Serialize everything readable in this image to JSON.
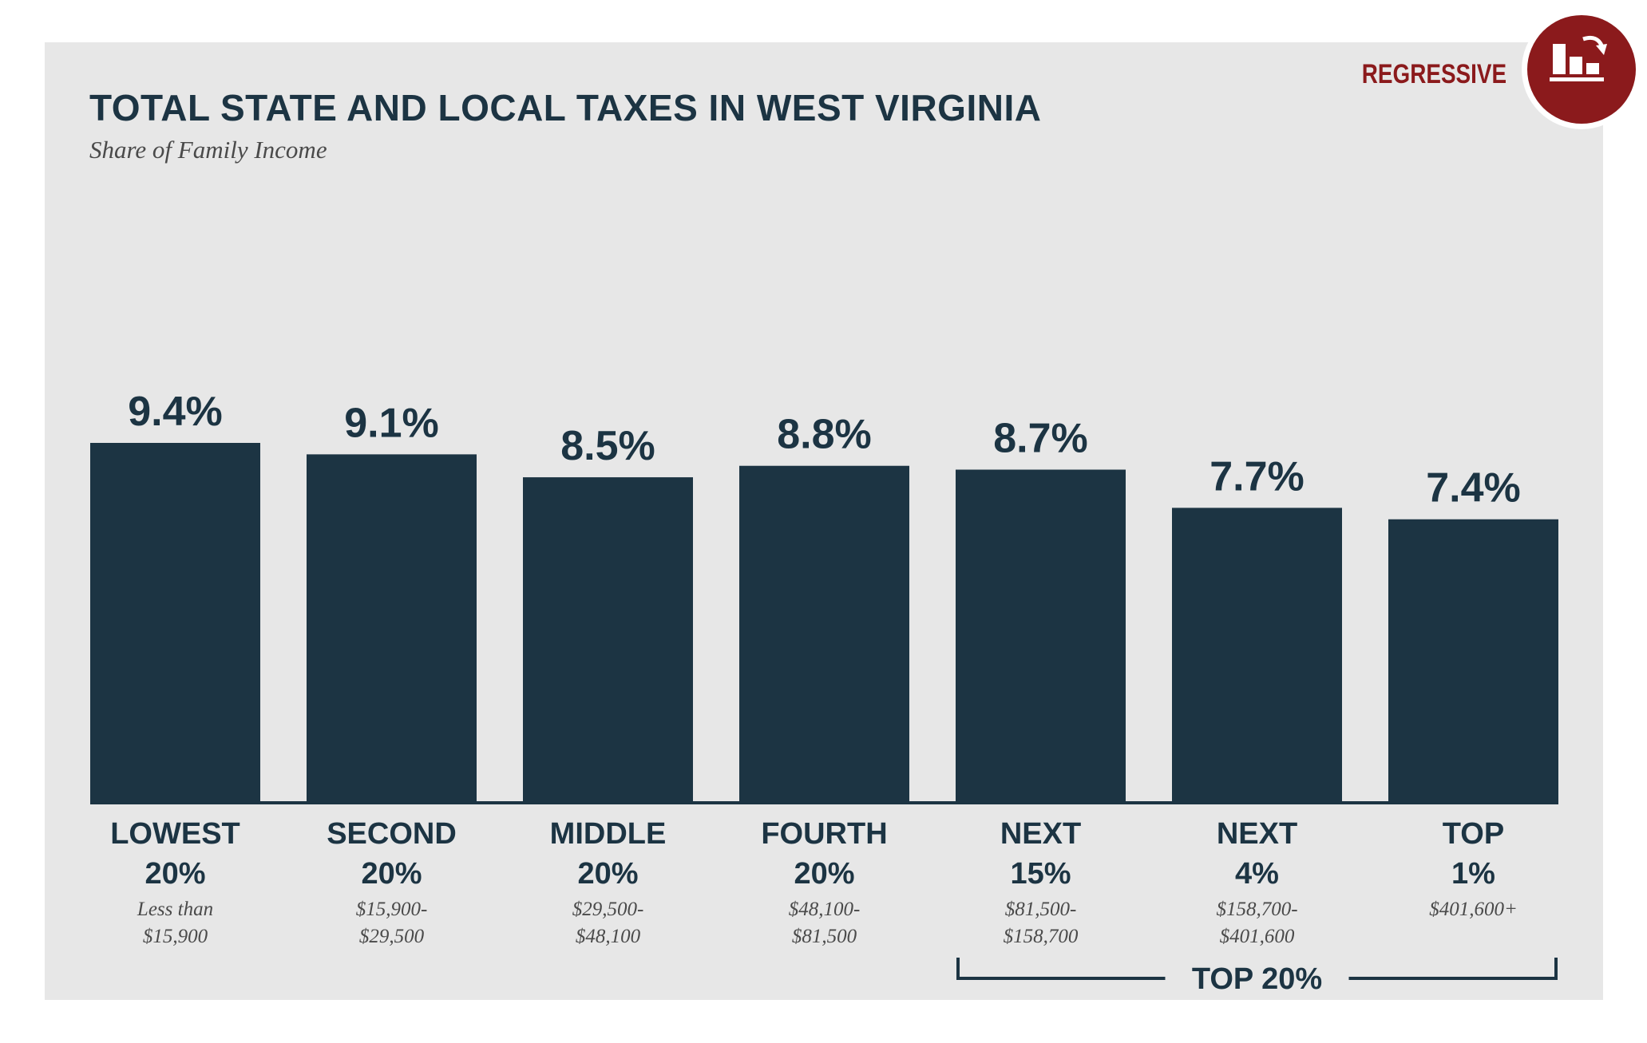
{
  "header": {
    "title": "TOTAL STATE AND LOCAL TAXES IN WEST VIRGINIA",
    "subtitle": "Share of Family Income"
  },
  "badge": {
    "label": "REGRESSIVE",
    "icon": "regressive-bar-chart-icon",
    "color": "#8b1a1c"
  },
  "colors": {
    "bar": "#1c3443",
    "panel": "#e7e7e7",
    "accent": "#8b1a1c"
  },
  "chart_data": {
    "type": "bar",
    "title": "TOTAL STATE AND LOCAL TAXES IN WEST VIRGINIA",
    "subtitle": "Share of Family Income",
    "categories": [
      {
        "name": "LOWEST",
        "share": "20%",
        "range": [
          "Less than",
          "$15,900"
        ]
      },
      {
        "name": "SECOND",
        "share": "20%",
        "range": [
          "$15,900-",
          "$29,500"
        ]
      },
      {
        "name": "MIDDLE",
        "share": "20%",
        "range": [
          "$29,500-",
          "$48,100"
        ]
      },
      {
        "name": "FOURTH",
        "share": "20%",
        "range": [
          "$48,100-",
          "$81,500"
        ]
      },
      {
        "name": "NEXT",
        "share": "15%",
        "range": [
          "$81,500-",
          "$158,700"
        ]
      },
      {
        "name": "NEXT",
        "share": "4%",
        "range": [
          "$158,700-",
          "$401,600"
        ]
      },
      {
        "name": "TOP",
        "share": "1%",
        "range": [
          "$401,600+"
        ]
      }
    ],
    "values": [
      9.4,
      9.1,
      8.5,
      8.8,
      8.7,
      7.7,
      7.4
    ],
    "value_labels": [
      "9.4%",
      "9.1%",
      "8.5%",
      "8.8%",
      "8.7%",
      "7.7%",
      "7.4%"
    ],
    "unit": "%",
    "ylim": [
      0,
      9.4
    ],
    "grid": false,
    "group_bracket": {
      "label": "TOP 20%",
      "from_index": 4,
      "to_index": 6
    }
  }
}
